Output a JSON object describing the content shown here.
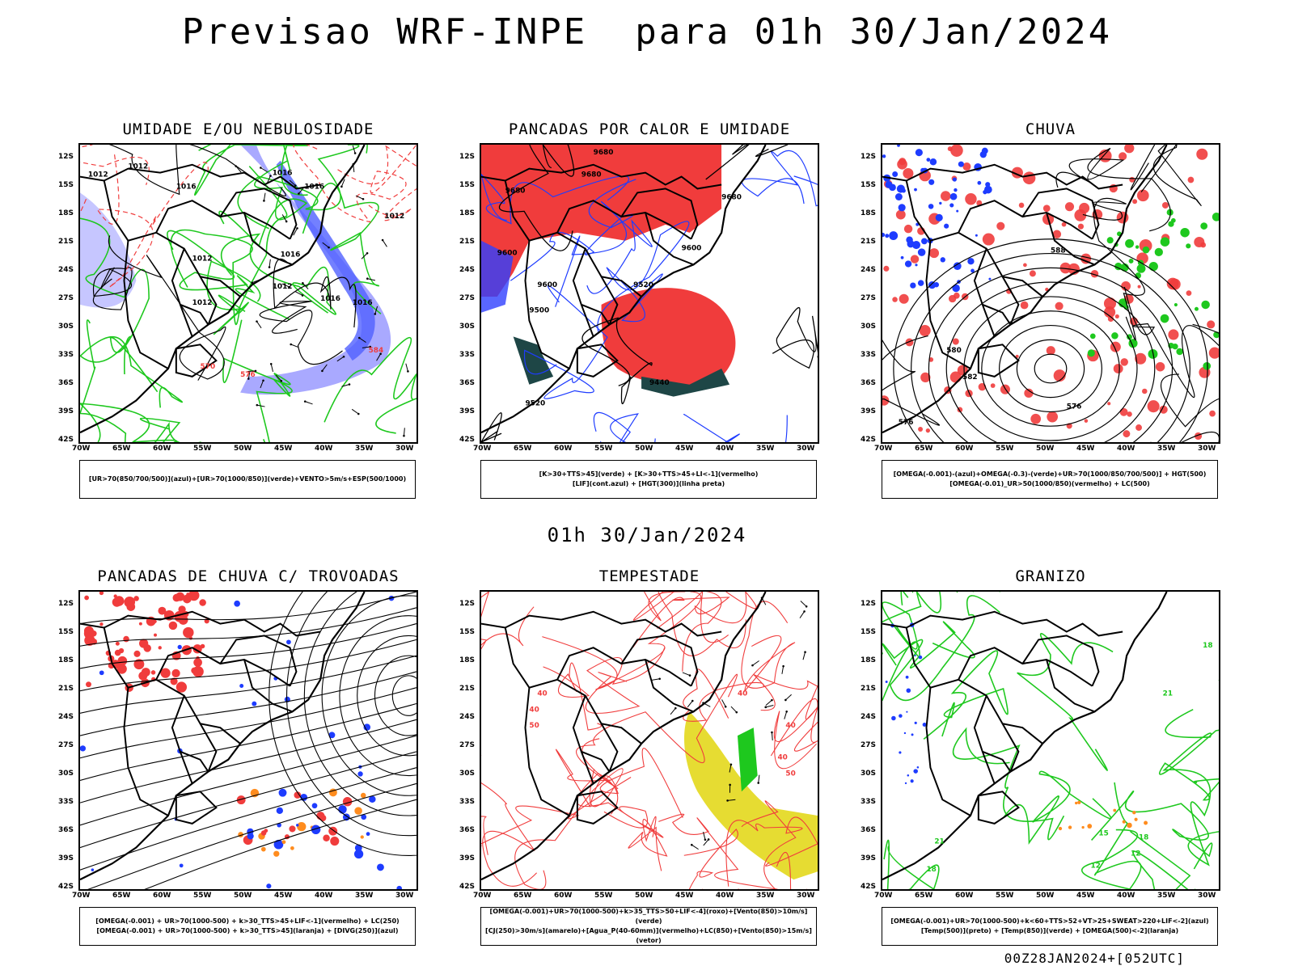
{
  "title": "Previsao WRF-INPE  para 01h 30/Jan/2024",
  "mid_title": "01h 30/Jan/2024",
  "footer": "00Z28JAN2024+[052UTC]",
  "lat_labels": [
    "12S",
    "15S",
    "18S",
    "21S",
    "24S",
    "27S",
    "30S",
    "33S",
    "36S",
    "39S",
    "42S"
  ],
  "lon_labels": [
    "70W",
    "65W",
    "60W",
    "55W",
    "50W",
    "45W",
    "40W",
    "35W",
    "30W"
  ],
  "colors": {
    "green": "#1ec81e",
    "blue": "#1e3cff",
    "lightblue": "#a0a0ff",
    "red": "#f03c3c",
    "darkteal": "#1e4646",
    "orange": "#ff8c1e",
    "yellow": "#e6dc32",
    "purple": "#a000c8"
  },
  "panels": [
    {
      "title": "UMIDADE E/OU NEBULOSIDADE",
      "legend": [
        "[UR>70(850/700/500)](azul)+[UR>70(1000/850)](verde)+VENTO>5m/s+ESP(500/1000)"
      ],
      "contour_labels": [
        "1012",
        "1012",
        "1016",
        "1016",
        "1016",
        "1012",
        "1016",
        "1012",
        "1012",
        "1016",
        "1012",
        "1016",
        "570",
        "576",
        "584"
      ]
    },
    {
      "title": "PANCADAS POR CALOR E UMIDADE",
      "legend": [
        "[K>30+TTS>45](verde) + [K>30+TTS>45+LI<-1](vermelho)",
        "[LIF](cont.azul) + [HGT(300)](linha preta)"
      ],
      "contour_labels": [
        "9680",
        "9680",
        "9680",
        "9680",
        "9600",
        "9600",
        "9600",
        "9520",
        "9500",
        "9440",
        "9520"
      ]
    },
    {
      "title": "CHUVA",
      "legend": [
        "[OMEGA(-0.001)-(azul)+OMEGA(-0.3)-(verde)+UR>70(1000/850/700/500)] + HGT(500)",
        "[OMEGA(-0.01)_UR>50(1000/850)(vermelho) + LC(500)"
      ],
      "contour_labels": [
        "588",
        "580",
        "582",
        "576",
        "576"
      ]
    },
    {
      "title": "PANCADAS DE CHUVA C/ TROVOADAS",
      "legend": [
        "[OMEGA(-0.001) + UR>70(1000-500) + k>30_TTS>45+LIF<-1](vermelho) + LC(250)",
        "[OMEGA(-0.001) + UR>70(1000-500) + k>30_TTS>45](laranja) + [DIVG(250)](azul)"
      ],
      "contour_labels": []
    },
    {
      "title": "TEMPESTADE",
      "legend": [
        "[OMEGA(-0.001)+UR>70(1000-500)+k>35_TTS>50+LIF<-4](roxo)+[Vento(850)>10m/s](verde)",
        "[CJ(250)>30m/s](amarelo)+[Agua_P(40-60mm)](vermelho)+LC(850)+[Vento(850)>15m/s](vetor)"
      ],
      "contour_labels": [
        "40",
        "40",
        "40",
        "50",
        "40",
        "40",
        "50"
      ]
    },
    {
      "title": "GRANIZO",
      "legend": [
        "[OMEGA(-0.001)+UR>70(1000-500)+k<60+TTS>52+VT>25+SWEAT>220+LIF<-2](azul)",
        "[Temp(500)](preto) + [Temp(850)](verde) + [OMEGA(500)<-2](laranja)"
      ],
      "contour_labels": [
        "18",
        "21",
        "21",
        "18",
        "15",
        "12",
        "12",
        "18"
      ]
    }
  ]
}
